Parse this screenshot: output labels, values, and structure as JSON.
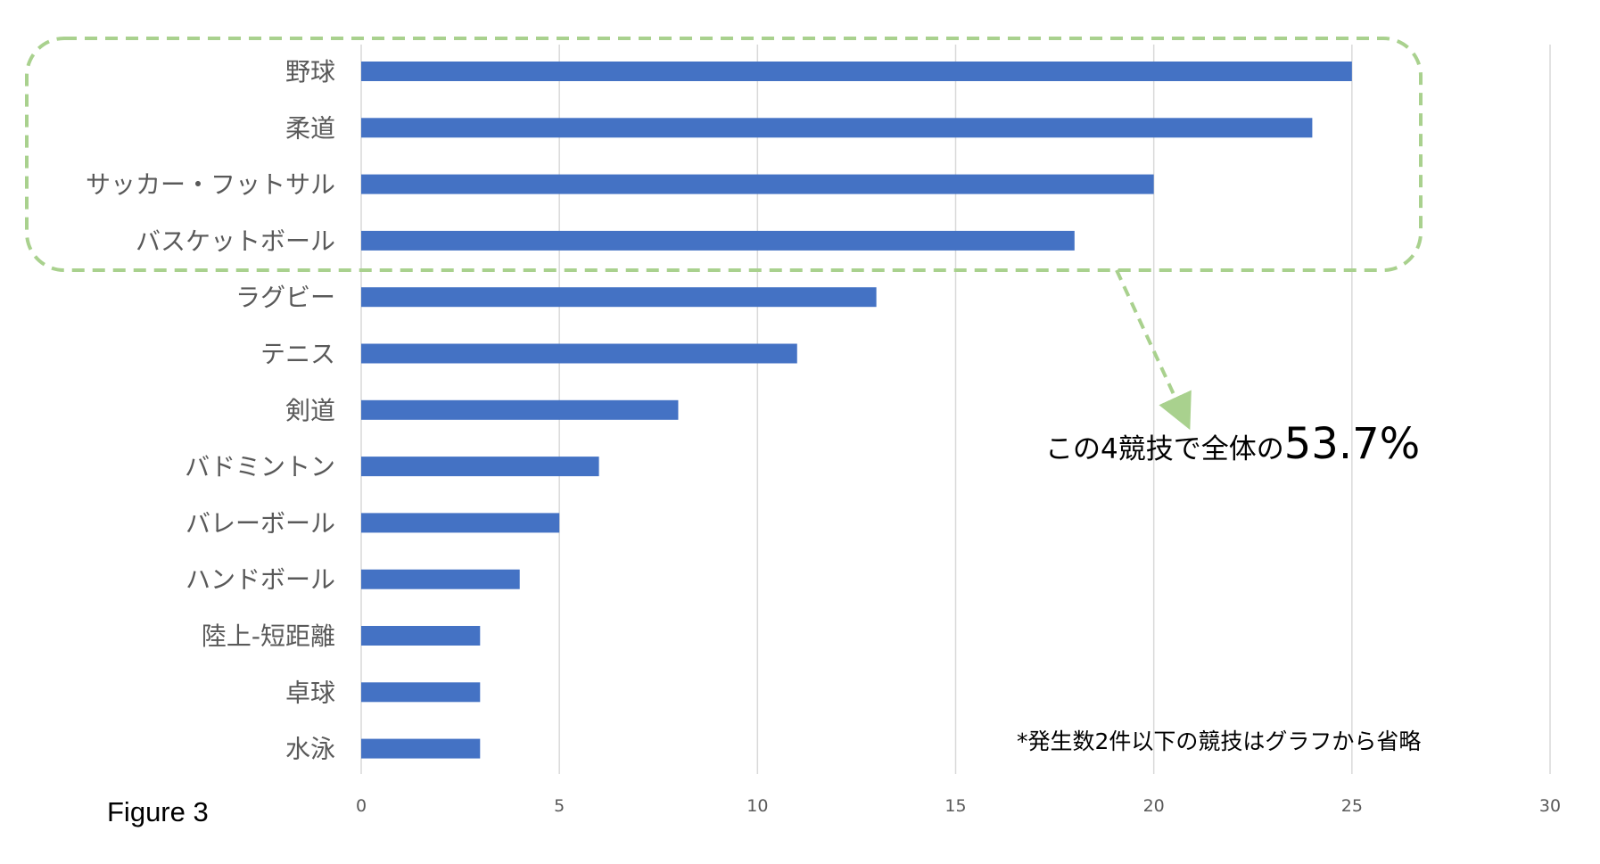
{
  "chart_data": {
    "type": "bar",
    "orientation": "horizontal",
    "categories": [
      "野球",
      "柔道",
      "サッカー・フットサル",
      "バスケットボール",
      "ラグビー",
      "テニス",
      "剣道",
      "バドミントン",
      "バレーボール",
      "ハンドボール",
      "陸上-短距離",
      "卓球",
      "水泳"
    ],
    "values": [
      25,
      24,
      20,
      18,
      13,
      11,
      8,
      6,
      5,
      4,
      3,
      3,
      3
    ],
    "xlim": [
      0,
      30
    ],
    "xticks": [
      0,
      5,
      10,
      15,
      20,
      25,
      30
    ],
    "grid": "vertical",
    "bar_color": "#4472C4",
    "highlight_color": "#A9D18E",
    "annotation": {
      "prefix": "この4競技で全体の",
      "value": "53.7%"
    },
    "footnote": "*発生数2件以下の競技はグラフから省略"
  },
  "caption": "Figure 3"
}
